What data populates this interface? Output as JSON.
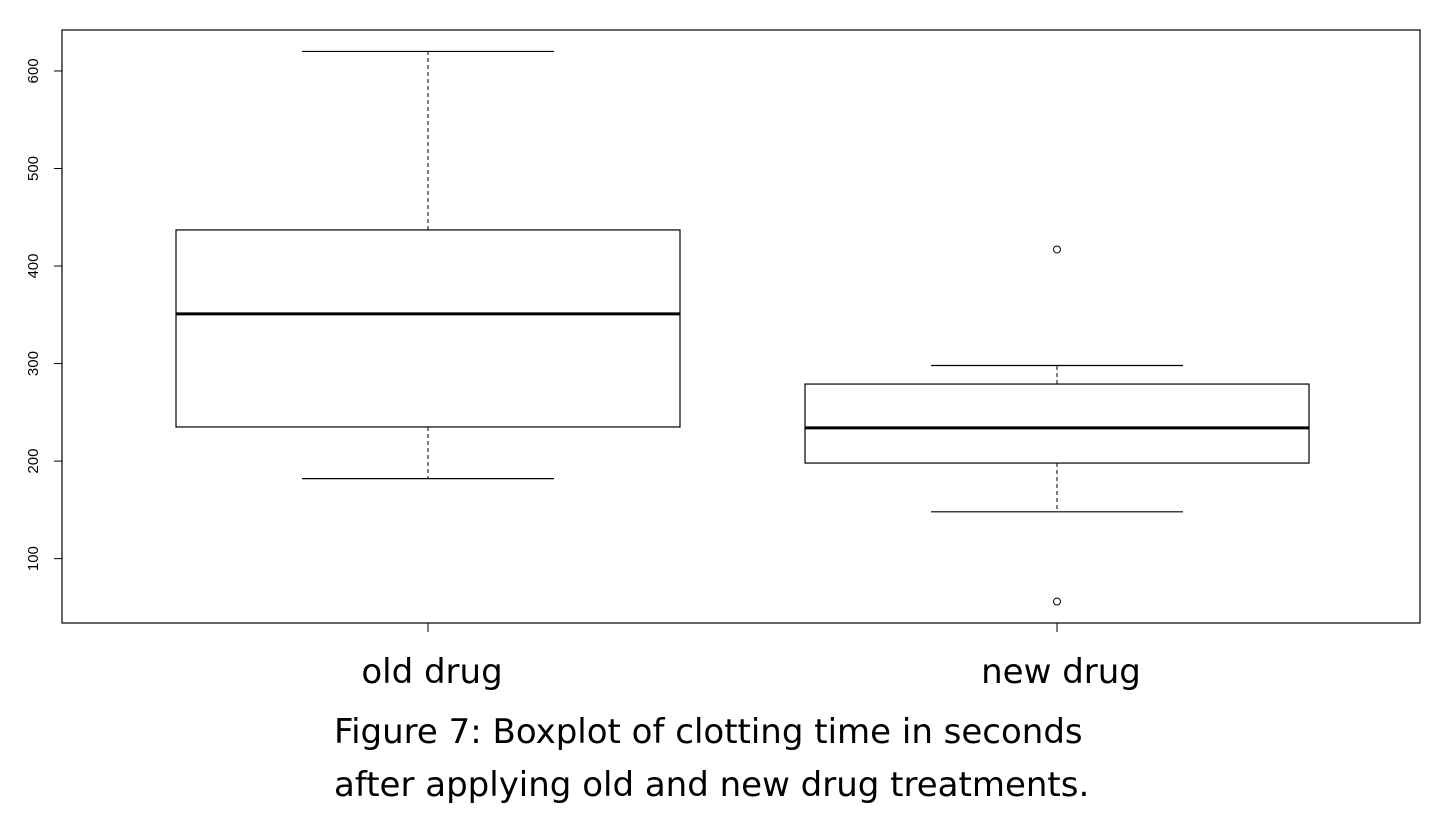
{
  "chart_data": {
    "type": "boxplot",
    "categories": [
      "old drug",
      "new drug"
    ],
    "boxes": [
      {
        "category": "old drug",
        "whisker_low": 182,
        "q1": 235,
        "median": 351,
        "q3": 437,
        "whisker_high": 620,
        "outliers": []
      },
      {
        "category": "new drug",
        "whisker_low": 148,
        "q1": 198,
        "median": 234,
        "q3": 279,
        "whisker_high": 298,
        "outliers": [
          417,
          56
        ]
      }
    ],
    "y_ticks": [
      100,
      200,
      300,
      400,
      500,
      600
    ],
    "ylim": [
      34,
      642
    ],
    "grid": false,
    "caption_line1": "Figure 7: Boxplot of clotting time in seconds",
    "caption_line2": "after applying old and new drug treatments."
  }
}
